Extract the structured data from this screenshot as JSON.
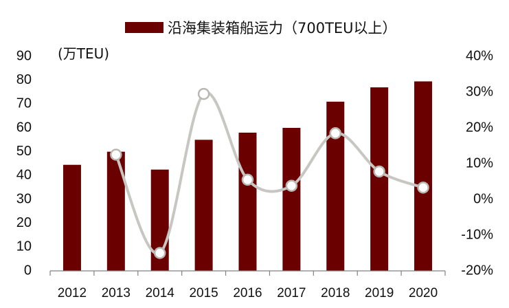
{
  "chart_data": {
    "type": "bar",
    "title": "",
    "left_axis_label": "(万TEU)",
    "categories": [
      "2012",
      "2013",
      "2014",
      "2015",
      "2016",
      "2017",
      "2018",
      "2019",
      "2020"
    ],
    "series": [
      {
        "name": "沿海集装箱船运力（700TEU以上）",
        "type": "bar",
        "axis": "left",
        "color": "#6b0000",
        "values": [
          44.5,
          50,
          42.5,
          55,
          58,
          60,
          71,
          77,
          79.5
        ]
      },
      {
        "type": "line",
        "axis": "right",
        "color": "#c8c6c2",
        "smooth": true,
        "values": [
          null,
          12.5,
          -15,
          29.5,
          5.5,
          3.8,
          18.5,
          7.8,
          3.3
        ]
      }
    ],
    "left_axis": {
      "min": 0,
      "max": 90,
      "step": 10
    },
    "right_axis": {
      "min": -20,
      "max": 40,
      "step": 10,
      "unit": "%"
    },
    "legend": {
      "position": "top"
    },
    "grid": false
  }
}
